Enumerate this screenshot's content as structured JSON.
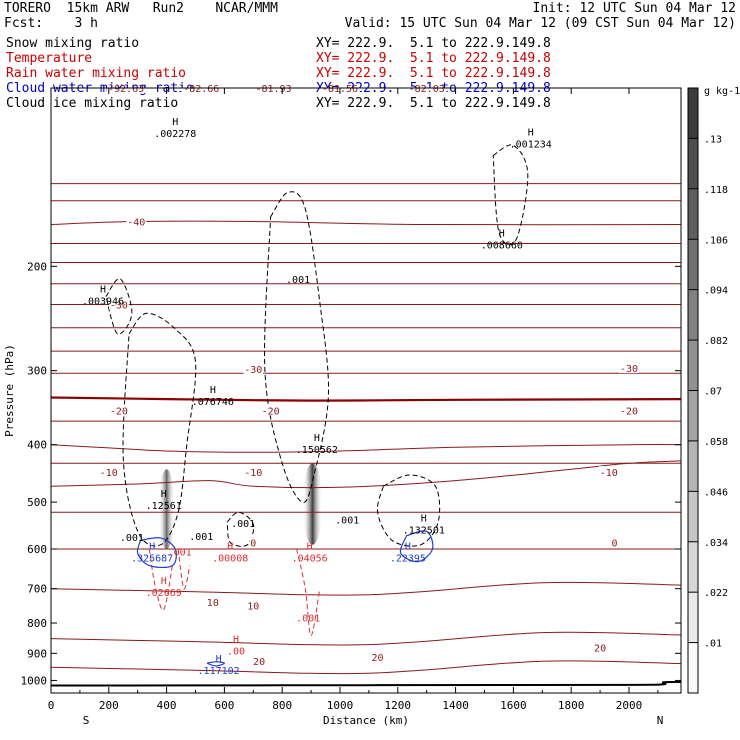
{
  "header": {
    "model": "TORERO  15km ARW   Run2    NCAR/MMM",
    "forecast": "Fcst:    3 h",
    "init": "Init: 12 UTC Sun 04 Mar 12",
    "valid": "Valid: 15 UTC Sun 04 Mar 12 (09 CST Sun 04 Mar 12)",
    "fields": [
      {
        "name": "Snow mixing ratio",
        "xy": "XY= 222.9.  5.1 to 222.9.149.8",
        "color": "#000000"
      },
      {
        "name": "Temperature",
        "xy": "XY= 222.9.  5.1 to 222.9.149.8",
        "color": "#cc0000"
      },
      {
        "name": "Rain water mixing ratio",
        "xy": "XY= 222.9.  5.1 to 222.9.149.8",
        "color": "#cc0000"
      },
      {
        "name": "Cloud water mixing ratio",
        "xy": "XY= 222.9.  5.1 to 222.9.149.8",
        "color": "#0000cc"
      },
      {
        "name": "Cloud ice mixing ratio",
        "xy": "XY= 222.9.  5.1 to 222.9.149.8",
        "color": "#000000"
      }
    ]
  },
  "colors": {
    "temperature": "#8b1a1a",
    "rain": "#e03030",
    "cloud_water": "#1f3fd0",
    "snow": "#000000",
    "freezing_line": "#8b0000"
  },
  "chart_data": {
    "type": "heatmap",
    "xlabel": "Distance (km)",
    "ylabel": "Pressure (hPa)",
    "xlim": [
      0,
      2180
    ],
    "ylim": [
      1050,
      100
    ],
    "y_scale": "log",
    "x_ticks": [
      0,
      200,
      400,
      600,
      800,
      1000,
      1200,
      1400,
      1600,
      1800,
      2000
    ],
    "y_ticks": [
      200,
      300,
      400,
      500,
      600,
      700,
      800,
      900,
      1000
    ],
    "endpoints": {
      "left": "S",
      "right": "N"
    },
    "colorbar": {
      "unit": "g kg-1",
      "ticks": [
        ".13",
        ".118",
        ".106",
        ".094",
        ".082",
        ".07",
        ".058",
        ".046",
        ".034",
        ".022",
        ".01"
      ],
      "min": 0.01,
      "max": 0.142
    },
    "cloud_ice_shading": [
      {
        "x": 400,
        "p_top": 440,
        "p_bottom": 600,
        "max": 0.09
      },
      {
        "x": 905,
        "p_top": 430,
        "p_bottom": 590,
        "max": 0.13
      }
    ],
    "temperature_contours": [
      {
        "label": "-50",
        "series": [
          [
            0,
            145
          ],
          [
            2180,
            145
          ]
        ]
      },
      {
        "label": "-40",
        "series": [
          [
            0,
            170
          ],
          [
            300,
            168
          ],
          [
            700,
            168
          ],
          [
            1300,
            170
          ],
          [
            2180,
            170
          ]
        ]
      },
      {
        "label": "-30",
        "series": [
          [
            0,
            197
          ],
          [
            800,
            197
          ],
          [
            1600,
            197
          ],
          [
            2180,
            197
          ]
        ]
      },
      {
        "label": "-20",
        "series": [
          [
            0,
            232
          ],
          [
            500,
            232
          ],
          [
            1000,
            232
          ],
          [
            2180,
            232
          ]
        ]
      },
      {
        "label": "-10",
        "series": [
          [
            0,
            278
          ],
          [
            400,
            278
          ],
          [
            900,
            278
          ],
          [
            2180,
            278
          ]
        ]
      },
      {
        "label": "0",
        "series": [
          [
            0,
            333
          ],
          [
            400,
            335
          ],
          [
            900,
            337
          ],
          [
            1400,
            336
          ],
          [
            2180,
            335
          ]
        ]
      },
      {
        "label": "10",
        "series": [
          [
            0,
            400
          ],
          [
            200,
            405
          ],
          [
            400,
            410
          ],
          [
            700,
            412
          ],
          [
            1000,
            410
          ],
          [
            1400,
            404
          ],
          [
            2000,
            400
          ],
          [
            2180,
            400
          ]
        ]
      },
      {
        "label": "20",
        "series": [
          [
            0,
            470
          ],
          [
            300,
            466
          ],
          [
            550,
            460
          ],
          [
            700,
            470
          ],
          [
            1000,
            472
          ],
          [
            1400,
            460
          ],
          [
            1800,
            440
          ],
          [
            2000,
            430
          ],
          [
            2180,
            426
          ]
        ]
      }
    ],
    "temperature_labels": [
      {
        "text": "-92.63",
        "x": 260,
        "p": 100
      },
      {
        "text": "-82.66",
        "x": 520,
        "p": 100
      },
      {
        "text": "-81.93",
        "x": 770,
        "p": 100
      },
      {
        "text": "-81.56",
        "x": 1000,
        "p": 100
      },
      {
        "text": "-82.03",
        "x": 1300,
        "p": 100
      },
      {
        "text": "-40",
        "x": 295,
        "p": 168
      },
      {
        "text": "-30",
        "x": 235,
        "p": 232
      },
      {
        "text": "-30",
        "x": 700,
        "p": 298
      },
      {
        "text": "-30",
        "x": 2000,
        "p": 297
      },
      {
        "text": "-20",
        "x": 235,
        "p": 350
      },
      {
        "text": "-20",
        "x": 760,
        "p": 350
      },
      {
        "text": "-20",
        "x": 2000,
        "p": 350
      },
      {
        "text": "-10",
        "x": 200,
        "p": 445
      },
      {
        "text": "-10",
        "x": 700,
        "p": 445
      },
      {
        "text": "-10",
        "x": 1930,
        "p": 445
      },
      {
        "text": "0",
        "x": 700,
        "p": 585
      },
      {
        "text": "0",
        "x": 1950,
        "p": 585
      },
      {
        "text": "10",
        "x": 560,
        "p": 737
      },
      {
        "text": "10",
        "x": 700,
        "p": 747
      },
      {
        "text": "20",
        "x": 1900,
        "p": 880
      },
      {
        "text": "20",
        "x": 1130,
        "p": 913
      },
      {
        "text": "20",
        "x": 720,
        "p": 928
      }
    ],
    "snow_contour_level": ".001",
    "maxima": [
      {
        "field": "snow",
        "text": ".002278",
        "x": 430,
        "p": 120
      },
      {
        "field": "snow",
        "text": ".001234",
        "x": 1660,
        "p": 125
      },
      {
        "field": "snow",
        "text": ".008660",
        "x": 1560,
        "p": 185
      },
      {
        "field": "snow",
        "text": ".003946",
        "x": 180,
        "p": 230
      },
      {
        "field": "snow",
        "text": ".076746",
        "x": 560,
        "p": 340
      },
      {
        "field": "snow",
        "text": ".150562",
        "x": 920,
        "p": 410
      },
      {
        "field": "snow",
        "text": ".12561",
        "x": 390,
        "p": 510
      },
      {
        "field": "snow",
        "text": ".132501",
        "x": 1290,
        "p": 560
      },
      {
        "field": "rain",
        "text": ".00008",
        "x": 620,
        "p": 625
      },
      {
        "field": "rain",
        "text": ".04056",
        "x": 895,
        "p": 625
      },
      {
        "field": "rain",
        "text": ".02669",
        "x": 390,
        "p": 715
      },
      {
        "field": "rain",
        "text": ".00",
        "x": 640,
        "p": 897
      },
      {
        "field": "cloud_water",
        "text": ".325687",
        "x": 350,
        "p": 625
      },
      {
        "field": "cloud_water",
        "text": ".22395",
        "x": 1235,
        "p": 625
      },
      {
        "field": "cloud_water",
        "text": ".117102",
        "x": 580,
        "p": 967
      }
    ],
    "contour_labels": [
      {
        "field": "snow",
        "text": ".001",
        "x": 855,
        "p": 210
      },
      {
        "field": "snow",
        "text": ".001",
        "x": 665,
        "p": 542
      },
      {
        "field": "snow",
        "text": ".001",
        "x": 1025,
        "p": 535
      },
      {
        "field": "snow",
        "text": ".001",
        "x": 520,
        "p": 570
      },
      {
        "field": "snow",
        "text": ".001",
        "x": 280,
        "p": 573
      },
      {
        "field": "rain",
        "text": ".001",
        "x": 445,
        "p": 606
      },
      {
        "field": "rain",
        "text": ".001",
        "x": 890,
        "p": 783
      }
    ]
  }
}
